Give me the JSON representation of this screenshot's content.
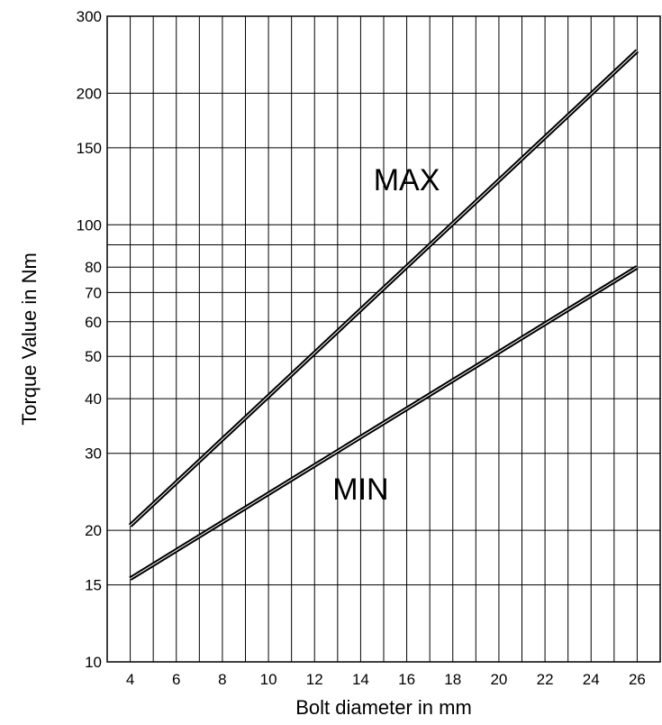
{
  "chart_data": {
    "type": "line",
    "xlabel": "Bolt diameter in mm",
    "ylabel": "Torque Value in Nm",
    "xlim": [
      3,
      27
    ],
    "ylim": [
      10,
      300
    ],
    "y_scale": "log",
    "grid": true,
    "x_ticks": [
      4,
      6,
      8,
      10,
      12,
      14,
      16,
      18,
      20,
      22,
      24,
      26
    ],
    "x_grid_step": 1,
    "y_ticks": [
      10,
      15,
      20,
      30,
      40,
      50,
      60,
      70,
      80,
      100,
      150,
      200,
      300
    ],
    "y_grid_extra": [
      90
    ],
    "series": [
      {
        "name": "MAX",
        "x": [
          4,
          26
        ],
        "y": [
          20.5,
          250
        ]
      },
      {
        "name": "MIN",
        "x": [
          4,
          26
        ],
        "y": [
          15.5,
          80
        ]
      }
    ]
  }
}
